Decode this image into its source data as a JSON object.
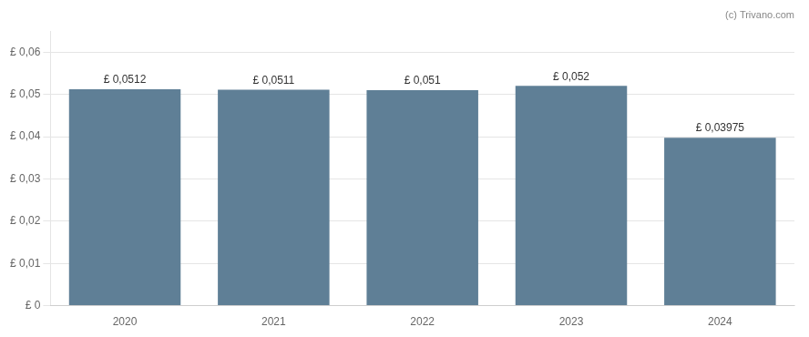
{
  "chart_data": {
    "type": "bar",
    "categories": [
      "2020",
      "2021",
      "2022",
      "2023",
      "2024"
    ],
    "values": [
      0.0512,
      0.0511,
      0.051,
      0.052,
      0.03975
    ],
    "value_labels": [
      "£ 0,0512",
      "£ 0,0511",
      "£ 0,051",
      "£ 0,052",
      "£ 0,03975"
    ],
    "data_labels": true,
    "color": "#5f7f96",
    "ylim": [
      0,
      0.065
    ],
    "yticks": [
      {
        "value": 0,
        "label": "£ 0"
      },
      {
        "value": 0.01,
        "label": "£ 0,01"
      },
      {
        "value": 0.02,
        "label": "£ 0,02"
      },
      {
        "value": 0.03,
        "label": "£ 0,03"
      },
      {
        "value": 0.04,
        "label": "£ 0,04"
      },
      {
        "value": 0.05,
        "label": "£ 0,05"
      },
      {
        "value": 0.06,
        "label": "£ 0,06"
      }
    ],
    "grid": true,
    "annotations": [
      "(c) Trivano.com"
    ]
  }
}
